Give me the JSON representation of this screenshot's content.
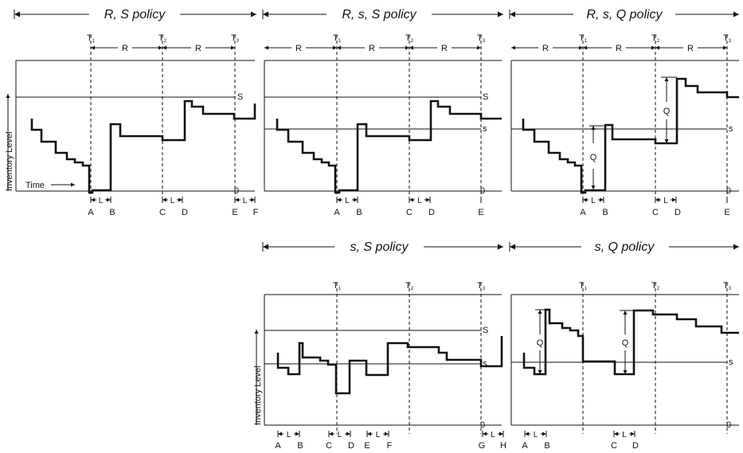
{
  "panels": [
    {
      "id": "rs",
      "title": "R, S policy",
      "review_labels": [
        "T",
        "T",
        "T"
      ],
      "review_subs": [
        "1",
        "2",
        "3"
      ],
      "period_label": "R",
      "levels": [
        "S"
      ],
      "zero_label": "0",
      "ylabel": "Inventory Level",
      "time_label": "Time",
      "events": [
        "A",
        "B",
        "C",
        "D",
        "E",
        "F"
      ],
      "lead_label": "L"
    },
    {
      "id": "rss",
      "title": "R, s, S policy",
      "review_labels": [
        "T",
        "T",
        "T"
      ],
      "review_subs": [
        "1",
        "2",
        "3"
      ],
      "period_label": "R",
      "levels": [
        "S",
        "s"
      ],
      "zero_label": "0",
      "events": [
        "A",
        "B",
        "C",
        "D",
        "E"
      ],
      "lead_label": "L"
    },
    {
      "id": "rsq",
      "title": "R, s, Q policy",
      "review_labels": [
        "T",
        "T",
        "T"
      ],
      "review_subs": [
        "1",
        "2",
        "3"
      ],
      "period_label": "R",
      "levels": [
        "s"
      ],
      "zero_label": "0",
      "events": [
        "A",
        "B",
        "C",
        "D",
        "E"
      ],
      "lead_label": "L",
      "q_label": "Q"
    },
    {
      "id": "ss",
      "title": "s, S policy",
      "review_labels": [
        "T",
        "T",
        "T"
      ],
      "review_subs": [
        "1",
        "2",
        "3"
      ],
      "levels": [
        "S",
        "s"
      ],
      "zero_label": "0",
      "ylabel": "Inventory Level",
      "events": [
        "A",
        "B",
        "C",
        "D",
        "E",
        "F",
        "G",
        "H"
      ],
      "lead_label": "L"
    },
    {
      "id": "sq",
      "title": "s, Q policy",
      "review_labels": [
        "T",
        "T",
        "T"
      ],
      "review_subs": [
        "1",
        "2",
        "3"
      ],
      "levels": [
        "s"
      ],
      "zero_label": "0",
      "events": [
        "A",
        "B",
        "C",
        "D"
      ],
      "lead_label": "L",
      "q_label": "Q"
    }
  ]
}
